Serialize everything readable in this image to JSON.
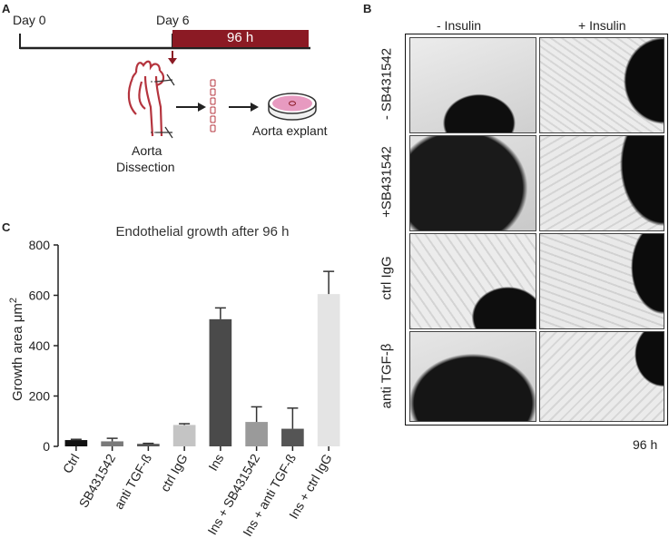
{
  "panels": {
    "a": {
      "letter": "A",
      "day0": "Day 0",
      "day6": "Day 6",
      "duration": "96 h",
      "dissection": [
        "Aorta",
        "Dissection"
      ],
      "explant": "Aorta explant",
      "colors": {
        "bar": "#8b1a24",
        "vessel": "#b5343e",
        "dish": "#e79ac0"
      }
    },
    "b": {
      "letter": "B",
      "col_labels": [
        "- Insulin",
        "+ Insulin"
      ],
      "row_labels": [
        "- SB431542",
        "+SB431542",
        "ctrl IgG",
        "anti TGF-β"
      ],
      "time": "96 h"
    },
    "c": {
      "letter": "C"
    }
  },
  "chart_data": {
    "type": "bar",
    "title": "Endothelial growth after 96 h",
    "ylabel": "Growth area μm",
    "ylabel_sup": "2",
    "ylim": [
      0,
      800
    ],
    "yticks": [
      0,
      200,
      400,
      600,
      800
    ],
    "categories": [
      "Ctrl",
      "SB431542",
      "anti TGF-ß",
      "ctrl IgG",
      "Ins",
      "Ins + SB431542",
      "Ins + anti TGF-ß",
      "Ins + ctrl IgG"
    ],
    "values": [
      25,
      20,
      10,
      85,
      505,
      97,
      70,
      605
    ],
    "errors": [
      3,
      12,
      2,
      5,
      45,
      60,
      82,
      90
    ],
    "colors": [
      "#111111",
      "#7a7a7a",
      "#555555",
      "#c4c4c4",
      "#4a4a4a",
      "#9a9a9a",
      "#555555",
      "#e4e4e4"
    ]
  }
}
